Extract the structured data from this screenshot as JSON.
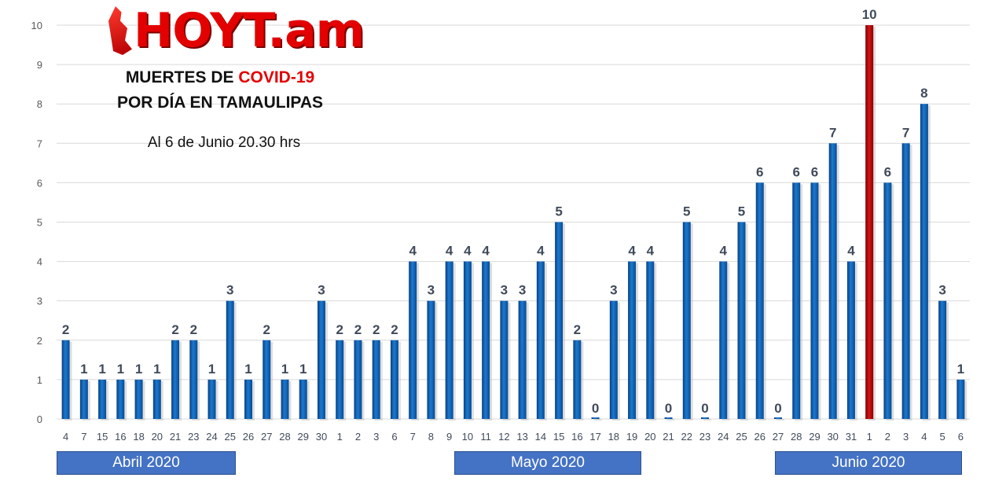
{
  "logo": {
    "text": "HOYT.am",
    "icon": "tamaulipas-map-icon"
  },
  "title": {
    "line1_prefix": "MUERTES DE ",
    "line1_highlight": "COVID-19",
    "line2": "POR DÍA EN TAMAULIPAS"
  },
  "subtitle": "Al 6 de Junio 20.30 hrs",
  "months": [
    {
      "label": "Abril 2020"
    },
    {
      "label": "Mayo 2020"
    },
    {
      "label": "Junio 2020"
    }
  ],
  "colors": {
    "bar": "#0a5eb0",
    "highlight": "#c00000",
    "grid": "#d9d9d9",
    "month_box": "#4472c4",
    "title_red": "#e30000"
  },
  "chart_data": {
    "type": "bar",
    "categories": [
      "4",
      "7",
      "15",
      "16",
      "18",
      "20",
      "21",
      "23",
      "24",
      "25",
      "26",
      "27",
      "28",
      "29",
      "30",
      "1",
      "2",
      "3",
      "6",
      "7",
      "8",
      "9",
      "10",
      "11",
      "12",
      "13",
      "14",
      "15",
      "16",
      "17",
      "18",
      "19",
      "20",
      "21",
      "22",
      "23",
      "24",
      "25",
      "26",
      "27",
      "28",
      "29",
      "30",
      "31",
      "1",
      "2",
      "3",
      "4",
      "5",
      "6"
    ],
    "values": [
      2,
      1,
      1,
      1,
      1,
      1,
      2,
      2,
      1,
      3,
      1,
      2,
      1,
      1,
      3,
      2,
      2,
      2,
      2,
      4,
      3,
      4,
      4,
      4,
      3,
      3,
      4,
      5,
      2,
      0,
      3,
      4,
      4,
      0,
      5,
      0,
      4,
      5,
      6,
      0,
      6,
      6,
      7,
      4,
      10,
      6,
      7,
      8,
      3,
      1
    ],
    "highlight_index": 44,
    "ylim": [
      0,
      10
    ],
    "yticks": [
      0,
      1,
      2,
      3,
      4,
      5,
      6,
      7,
      8,
      9,
      10
    ],
    "grid": true,
    "data_labels": true,
    "xlabel": "",
    "ylabel": ""
  }
}
